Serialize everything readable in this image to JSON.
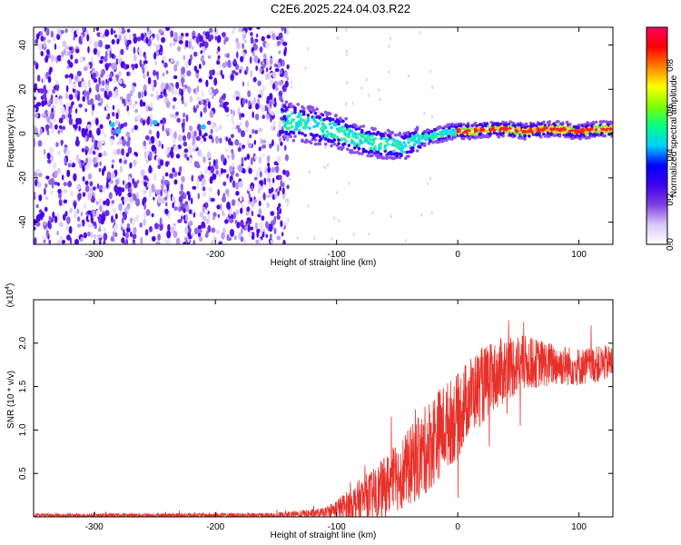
{
  "title": "C2E6.2025.224.04.03.R22",
  "chart_data": [
    {
      "type": "heatmap",
      "xlabel": "Height of straight line (km)",
      "ylabel": "Frequency (Hz)",
      "xlim": [
        -350,
        128
      ],
      "ylim": [
        -50,
        48
      ],
      "xticks": [
        -300,
        -200,
        -100,
        0,
        100
      ],
      "yticks": [
        -40,
        -20,
        0,
        20,
        40
      ],
      "colorbar": {
        "label": "Normalized spectral amplitude",
        "range": [
          0,
          0.97
        ],
        "ticks": [
          0.0,
          0.2,
          0.4,
          0.6,
          0.8
        ],
        "tick_labels": [
          "0.0",
          "0.2",
          "0.4",
          "0.6",
          "0.8"
        ],
        "colormap": [
          "#ffffff",
          "#d8c8f8",
          "#8040e0",
          "#4000f0",
          "#0000ff",
          "#00d0ff",
          "#00ff80",
          "#80ff00",
          "#ffff00",
          "#ff8000",
          "#ff0000",
          "#ff0060"
        ]
      },
      "ridge": {
        "x": [
          -145,
          -130,
          -115,
          -100,
          -85,
          -70,
          -55,
          -45,
          -35,
          -20,
          -5,
          10,
          25,
          40,
          55,
          70,
          85,
          100,
          115,
          128
        ],
        "y": [
          6,
          5,
          3,
          1,
          -2,
          -4,
          -5,
          -6,
          -3,
          -1,
          1,
          1,
          2,
          2,
          1,
          2,
          2,
          1,
          2,
          2
        ]
      },
      "noise_region_x": [
        -350,
        -140
      ]
    },
    {
      "type": "line",
      "xlabel": "Height of straight line (km)",
      "ylabel": "SNR (10 * v/v)",
      "multiplier_label": "(x10",
      "multiplier_exp": "4",
      "xlim": [
        -350,
        128
      ],
      "ylim": [
        0,
        2.5
      ],
      "xticks": [
        -300,
        -200,
        -100,
        0,
        100
      ],
      "yticks": [
        0.5,
        1.0,
        1.5,
        2.0
      ],
      "ytick_labels": [
        "0.5",
        "1.0",
        "1.5",
        "2.0"
      ],
      "color": "#e8302a",
      "envelope": {
        "x": [
          -350,
          -150,
          -110,
          -100,
          -90,
          -80,
          -70,
          -60,
          -50,
          -40,
          -30,
          -20,
          -10,
          0,
          10,
          20,
          30,
          40,
          50,
          60,
          80,
          100,
          128
        ],
        "base": [
          0.02,
          0.02,
          0.05,
          0.1,
          0.15,
          0.22,
          0.28,
          0.38,
          0.5,
          0.62,
          0.75,
          0.95,
          1.1,
          1.2,
          1.45,
          1.55,
          1.65,
          1.75,
          1.8,
          1.8,
          1.78,
          1.75,
          1.8
        ],
        "amp": [
          0.02,
          0.03,
          0.06,
          0.12,
          0.18,
          0.25,
          0.3,
          0.35,
          0.4,
          0.45,
          0.5,
          0.55,
          0.5,
          0.5,
          0.45,
          0.45,
          0.4,
          0.4,
          0.35,
          0.3,
          0.25,
          0.22,
          0.2
        ]
      }
    }
  ]
}
